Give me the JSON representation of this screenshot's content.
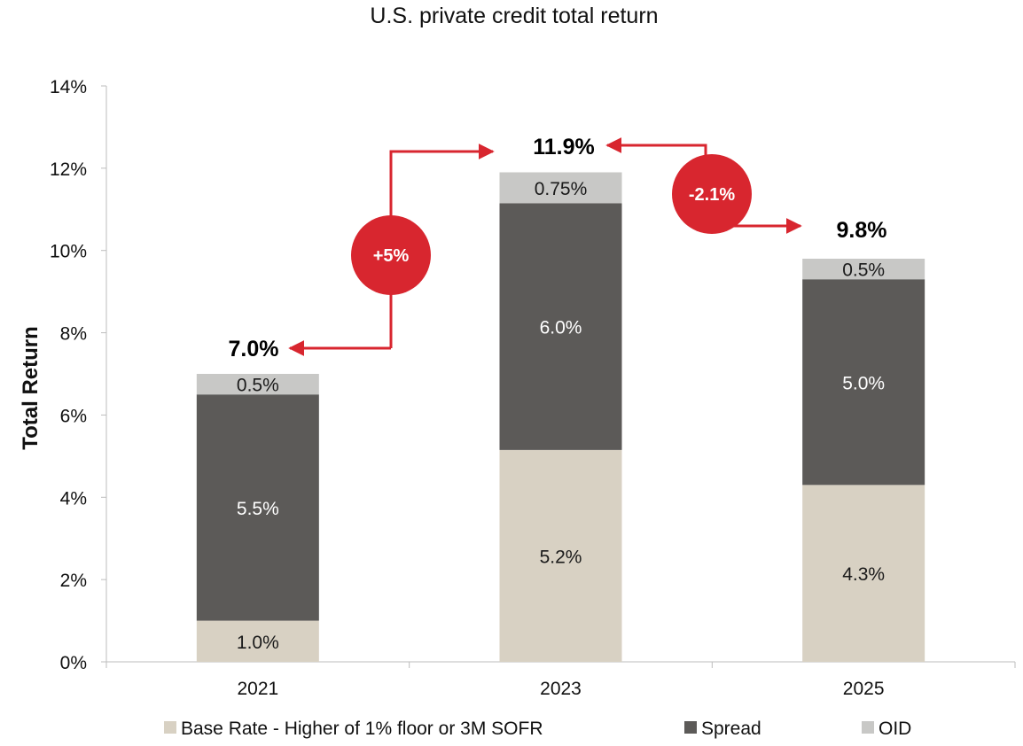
{
  "chart_data": {
    "type": "bar",
    "stacked": true,
    "title": "U.S. private credit total return",
    "xlabel": "",
    "ylabel": "Total Return",
    "categories": [
      "2021",
      "2023",
      "2025"
    ],
    "ylim": [
      0,
      14
    ],
    "yticks": [
      0,
      2,
      4,
      6,
      8,
      10,
      12,
      14
    ],
    "ytick_labels": [
      "0%",
      "2%",
      "4%",
      "6%",
      "8%",
      "10%",
      "12%",
      "14%"
    ],
    "series": [
      {
        "name": "Base Rate - Higher of 1% floor or 3M SOFR",
        "color": "#d8d1c3",
        "label_color": "#1a1a1a",
        "values": [
          1.0,
          5.15,
          4.3
        ],
        "labels": [
          "1.0%",
          "5.2%",
          "4.3%"
        ]
      },
      {
        "name": "Spread",
        "color": "#5c5a58",
        "label_color": "#ffffff",
        "values": [
          5.5,
          6.0,
          5.0
        ],
        "labels": [
          "5.5%",
          "6.0%",
          "5.0%"
        ]
      },
      {
        "name": "OID",
        "color": "#c8c8c6",
        "label_color": "#1a1a1a",
        "values": [
          0.5,
          0.75,
          0.5
        ],
        "labels": [
          "0.5%",
          "0.75%",
          "0.5%"
        ]
      }
    ],
    "totals": [
      7.0,
      11.9,
      9.8
    ],
    "total_labels": [
      "7.0%",
      "11.9%",
      "9.8%"
    ],
    "annotations": [
      {
        "text": "+5%",
        "from": "2021",
        "to": "2023"
      },
      {
        "text": "-2.1%",
        "from": "2023",
        "to": "2025"
      }
    ],
    "annotation_color": "#d8262f",
    "legend": "bottom",
    "grid": false
  }
}
